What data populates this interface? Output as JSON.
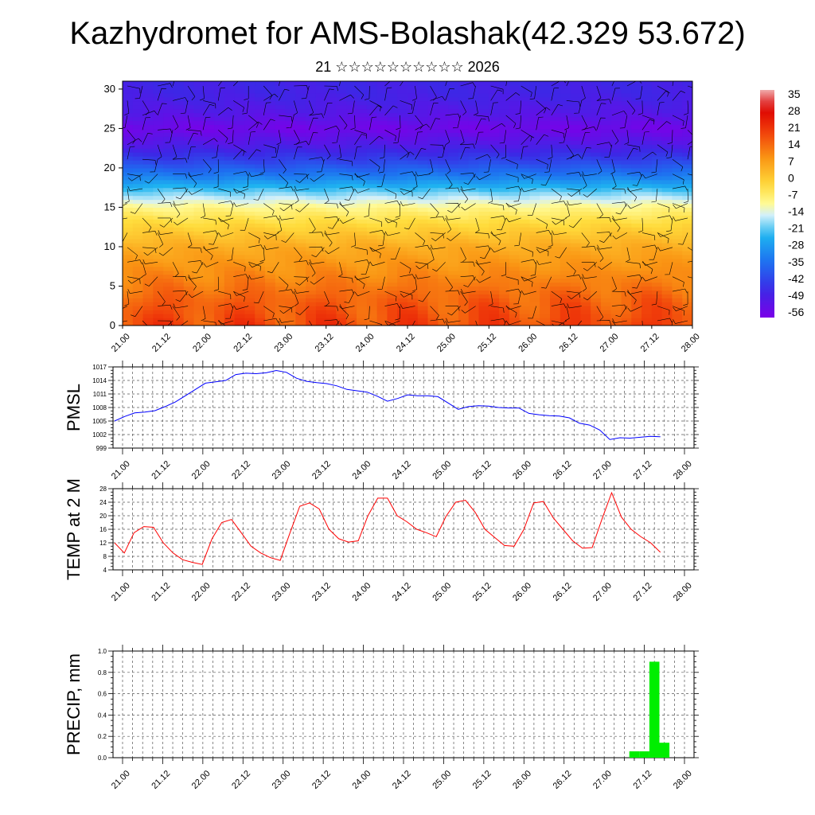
{
  "header": {
    "title": "Kazhydromet for AMS-Bolashak(42.329 53.672)",
    "subtitle": "21 ☆☆☆☆☆☆☆☆☆☆ 2026"
  },
  "chart_data": [
    {
      "type": "heatmap",
      "title": "",
      "xlabel": "",
      "ylabel": "",
      "x_tick_labels": [
        "21.00",
        "21.12",
        "22.00",
        "22.12",
        "23.00",
        "23.12",
        "24.00",
        "24.12",
        "25.00",
        "25.12",
        "26.00",
        "26.12",
        "27.00",
        "27.12",
        "28.00"
      ],
      "y_ticks": [
        0,
        5,
        10,
        15,
        20,
        25,
        30
      ],
      "ylim": [
        0,
        31
      ],
      "colorbar": {
        "labels": [
          "35",
          "28",
          "21",
          "14",
          "7",
          "0",
          "-7",
          "-14",
          "-21",
          "-28",
          "-35",
          "-42",
          "-49",
          "-56"
        ],
        "range": [
          -60,
          38
        ]
      },
      "temperature_profile": [
        {
          "height": 0,
          "value": 19
        },
        {
          "height": 3,
          "value": 16
        },
        {
          "height": 6,
          "value": 11
        },
        {
          "height": 10,
          "value": 5
        },
        {
          "height": 13,
          "value": -3
        },
        {
          "height": 15,
          "value": -10
        },
        {
          "height": 17,
          "value": -21
        },
        {
          "height": 19,
          "value": -34
        },
        {
          "height": 21,
          "value": -44
        },
        {
          "height": 23,
          "value": -52
        },
        {
          "height": 25,
          "value": -58
        },
        {
          "height": 27,
          "value": -53
        },
        {
          "height": 29,
          "value": -50
        },
        {
          "height": 31,
          "value": -49
        }
      ],
      "wind_barbs": true
    },
    {
      "type": "line",
      "ylabel": "PMSL",
      "ylim": [
        999,
        1017
      ],
      "y_ticks": [
        999,
        1002,
        1005,
        1008,
        1011,
        1014,
        1017
      ],
      "x_tick_labels": [
        "21.00",
        "21.12",
        "22.00",
        "22.12",
        "23.00",
        "23.12",
        "24.00",
        "24.12",
        "25.00",
        "25.12",
        "26.00",
        "26.12",
        "27.00",
        "27.12",
        "28.00"
      ],
      "color": "#0000ff",
      "series": [
        {
          "values": [
            1005.0,
            1006.0,
            1006.8,
            1007.0,
            1007.3,
            1008.2,
            1009.2,
            1010.6,
            1012.0,
            1013.4,
            1013.7,
            1014.0,
            1015.3,
            1015.6,
            1015.5,
            1015.7,
            1016.2,
            1015.8,
            1014.5,
            1013.8,
            1013.5,
            1013.3,
            1012.8,
            1012.0,
            1011.7,
            1011.4,
            1010.5,
            1009.4,
            1010.0,
            1010.8,
            1010.6,
            1010.6,
            1010.4,
            1009.0,
            1007.6,
            1008.2,
            1008.4,
            1008.3,
            1008.0,
            1007.9,
            1007.9,
            1006.7,
            1006.4,
            1006.2,
            1006.1,
            1005.7,
            1004.5,
            1004.1,
            1003.0,
            1000.9,
            1001.3,
            1001.2,
            1001.4,
            1001.6,
            1001.5
          ]
        }
      ],
      "series_x_start": -0.2,
      "series_x_end": 13.4
    },
    {
      "type": "line",
      "ylabel": "TEMP at 2 M",
      "ylim": [
        4,
        28
      ],
      "y_ticks": [
        4,
        8,
        12,
        16,
        20,
        24,
        28
      ],
      "x_tick_labels": [
        "21.00",
        "21.12",
        "22.00",
        "22.12",
        "23.00",
        "23.12",
        "24.00",
        "24.12",
        "25.00",
        "25.12",
        "26.00",
        "26.12",
        "27.00",
        "27.12",
        "28.00"
      ],
      "color": "#ff0000",
      "series": [
        {
          "values": [
            12.0,
            9.0,
            15.0,
            16.8,
            16.6,
            12.0,
            9.0,
            7.0,
            6.2,
            5.6,
            13.2,
            18.0,
            18.9,
            15.0,
            11.0,
            9.0,
            7.6,
            6.8,
            15.0,
            22.8,
            23.8,
            22.0,
            16.0,
            13.2,
            12.2,
            12.6,
            20.0,
            25.2,
            25.2,
            20.0,
            18.2,
            16.0,
            15.0,
            13.8,
            19.8,
            24.0,
            24.6,
            21.0,
            16.0,
            13.6,
            11.2,
            11.0,
            16.0,
            23.8,
            24.2,
            19.4,
            16.0,
            12.6,
            10.4,
            10.6,
            19.0,
            26.8,
            19.6,
            16.0,
            13.8,
            12.0,
            9.2
          ]
        }
      ],
      "series_x_start": -0.2,
      "series_x_end": 13.4
    },
    {
      "type": "bar",
      "ylabel": "PRECIP, mm",
      "ylim": [
        0.0,
        1.0
      ],
      "y_ticks": [
        0.0,
        0.2,
        0.4,
        0.6,
        0.8,
        1.0
      ],
      "x_tick_labels": [
        "21.00",
        "21.12",
        "22.00",
        "22.12",
        "23.00",
        "23.12",
        "24.00",
        "24.12",
        "25.00",
        "25.12",
        "26.00",
        "26.12",
        "27.00",
        "27.12",
        "28.00"
      ],
      "color": "#00ee00",
      "bars": [
        {
          "x": 12.75,
          "value": 0.06
        },
        {
          "x": 13.0,
          "value": 0.06
        },
        {
          "x": 13.25,
          "value": 0.9
        },
        {
          "x": 13.5,
          "value": 0.14
        }
      ]
    }
  ]
}
